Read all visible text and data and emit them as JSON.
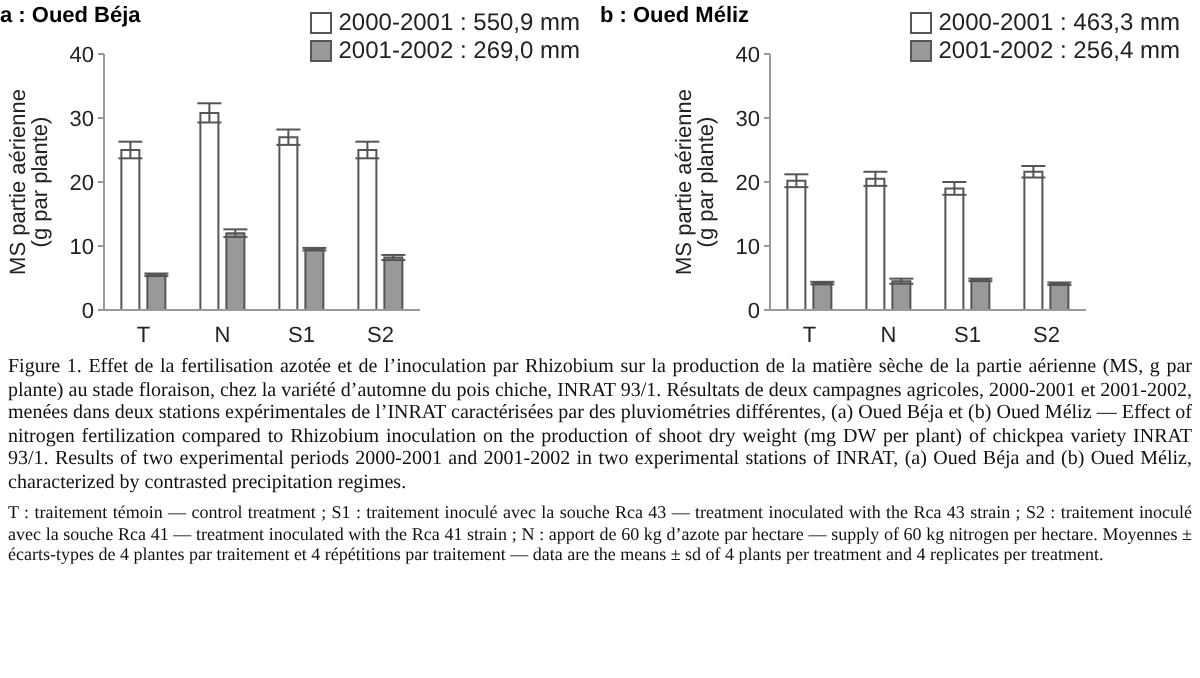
{
  "chart_data": [
    {
      "type": "bar",
      "title": "a : Oued Béja",
      "ylabel": "MS partie aérienne\n(g par plante)",
      "categories": [
        "T",
        "N",
        "S1",
        "S2"
      ],
      "ylim": [
        0,
        40
      ],
      "yticks": [
        0,
        10,
        20,
        30,
        40
      ],
      "grid": false,
      "legend": "top right",
      "series": [
        {
          "name": "2000-2001 : 550,9 mm",
          "color": "#ffffff",
          "values": [
            25,
            30.8,
            27,
            25
          ],
          "errors": [
            1.3,
            1.5,
            1.2,
            1.3
          ]
        },
        {
          "name": "2001-2002 : 269,0 mm",
          "color": "#999999",
          "values": [
            5.5,
            12,
            9.5,
            8.2
          ],
          "errors": [
            0.2,
            0.6,
            0.2,
            0.4
          ]
        }
      ],
      "annotations": [
        "Figure 1. Effet de la fertilisation azotée et de l’inoculation par Rhizobium sur la production de la matière sèche de la partie aérienne (MS, g par plante) au stade floraison, chez la variété d’automne du pois chiche, INRAT 93/1. Résultats de deux campagnes agricoles, 2000-2001 et 2001-2002, menées dans deux stations expérimentales de l’INRAT caractérisées par des pluviométries différentes, (a) Oued Béja et (b) Oued Méliz — Effect of nitrogen fertilization compared to Rhizobium inoculation on the production of shoot dry weight (mg DW per plant) of chickpea variety INRAT 93/1. Results of two experimental periods 2000-2001 and 2001-2002 in two experimental stations of INRAT, (a) Oued Béja and (b) Oued Méliz, characterized by contrasted precipitation regimes.",
        "T : traitement témoin — control treatment ; S1 : traitement inoculé avec la souche Rca 43 — treatment inoculated with the Rca 43 strain ; S2 : traitement inoculé avec la souche Rca 41 — treatment inoculated with the Rca 41 strain ; N : apport de 60 kg d’azote par hectare — supply of 60 kg nitrogen per hectare. Moyennes ± écarts-types de 4 plantes par traitement et 4 répétitions par traitement — data are the means ± sd of 4 plants per treatment and 4 replicates per treatment."
      ]
    },
    {
      "type": "bar",
      "title": "b : Oued Méliz",
      "ylabel": "MS partie aérienne\n(g par plante)",
      "categories": [
        "T",
        "N",
        "S1",
        "S2"
      ],
      "ylim": [
        0,
        40
      ],
      "yticks": [
        0,
        10,
        20,
        30,
        40
      ],
      "grid": false,
      "legend": "top right",
      "series": [
        {
          "name": "2000-2001 : 463,3 mm",
          "color": "#ffffff",
          "values": [
            20.2,
            20.5,
            19,
            21.6
          ],
          "errors": [
            1,
            1.1,
            1,
            0.9
          ]
        },
        {
          "name": "2001-2002 : 256,4 mm",
          "color": "#999999",
          "values": [
            4.2,
            4.5,
            4.7,
            4.1
          ],
          "errors": [
            0.2,
            0.4,
            0.2,
            0.2
          ]
        }
      ]
    }
  ]
}
